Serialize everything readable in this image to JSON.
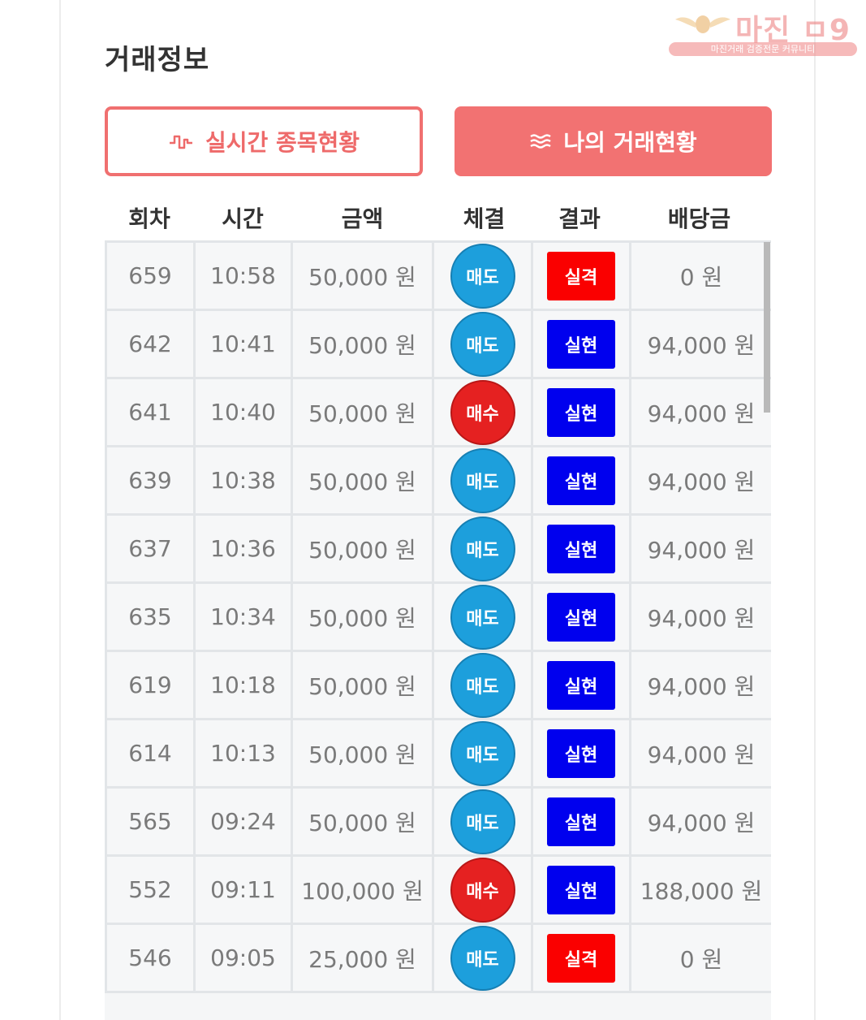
{
  "page": {
    "title": "거래정보"
  },
  "watermark": {
    "brand": "마진 ㅁ9",
    "tagline": "마진거래 검증전문 커뮤니티"
  },
  "tabs": {
    "realtime_label": "실시간 종목현황",
    "mytrade_label": "나의 거래현황",
    "active": "mytrade",
    "accent_color": "#f27272"
  },
  "table": {
    "headers": [
      "회차",
      "시간",
      "금액",
      "체결",
      "결과",
      "배당금"
    ],
    "rows": [
      {
        "round": "659",
        "time": "10:58",
        "amount": "50,000 원",
        "side": "매도",
        "side_type": "sell",
        "result": "실격",
        "result_type": "fail",
        "payout": "0 원"
      },
      {
        "round": "642",
        "time": "10:41",
        "amount": "50,000 원",
        "side": "매도",
        "side_type": "sell",
        "result": "실현",
        "result_type": "win",
        "payout": "94,000 원"
      },
      {
        "round": "641",
        "time": "10:40",
        "amount": "50,000 원",
        "side": "매수",
        "side_type": "buy",
        "result": "실현",
        "result_type": "win",
        "payout": "94,000 원"
      },
      {
        "round": "639",
        "time": "10:38",
        "amount": "50,000 원",
        "side": "매도",
        "side_type": "sell",
        "result": "실현",
        "result_type": "win",
        "payout": "94,000 원"
      },
      {
        "round": "637",
        "time": "10:36",
        "amount": "50,000 원",
        "side": "매도",
        "side_type": "sell",
        "result": "실현",
        "result_type": "win",
        "payout": "94,000 원"
      },
      {
        "round": "635",
        "time": "10:34",
        "amount": "50,000 원",
        "side": "매도",
        "side_type": "sell",
        "result": "실현",
        "result_type": "win",
        "payout": "94,000 원"
      },
      {
        "round": "619",
        "time": "10:18",
        "amount": "50,000 원",
        "side": "매도",
        "side_type": "sell",
        "result": "실현",
        "result_type": "win",
        "payout": "94,000 원"
      },
      {
        "round": "614",
        "time": "10:13",
        "amount": "50,000 원",
        "side": "매도",
        "side_type": "sell",
        "result": "실현",
        "result_type": "win",
        "payout": "94,000 원"
      },
      {
        "round": "565",
        "time": "09:24",
        "amount": "50,000 원",
        "side": "매도",
        "side_type": "sell",
        "result": "실현",
        "result_type": "win",
        "payout": "94,000 원"
      },
      {
        "round": "552",
        "time": "09:11",
        "amount": "100,000 원",
        "side": "매수",
        "side_type": "buy",
        "result": "실현",
        "result_type": "win",
        "payout": "188,000 원"
      },
      {
        "round": "546",
        "time": "09:05",
        "amount": "25,000 원",
        "side": "매도",
        "side_type": "sell",
        "result": "실격",
        "result_type": "fail",
        "payout": "0 원"
      }
    ]
  },
  "colors": {
    "sell": "#1d9fdc",
    "buy": "#e52121",
    "fail": "#fa0000",
    "win": "#0000ee"
  },
  "icons": {
    "realtime": "pulse-icon",
    "mytrade": "waves-icon"
  }
}
